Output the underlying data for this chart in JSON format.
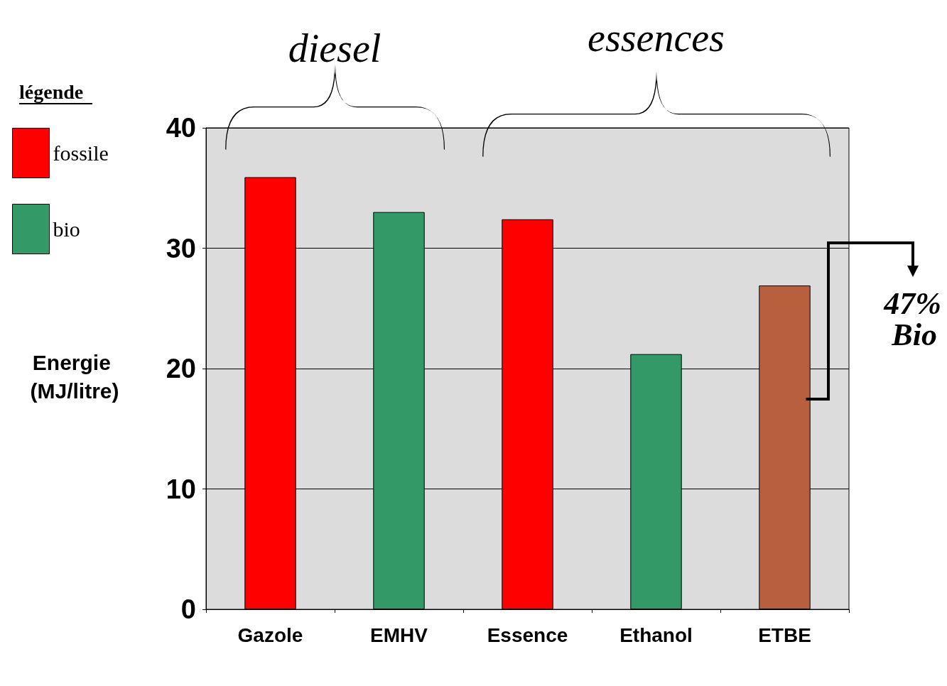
{
  "chart_data": {
    "type": "bar",
    "categories": [
      "Gazole",
      "EMHV",
      "Essence",
      "Ethanol",
      "ETBE"
    ],
    "series": [
      {
        "name": "fossile",
        "color": "#ff0000",
        "values": [
          35.9,
          null,
          32.4,
          null,
          null
        ]
      },
      {
        "name": "bio",
        "color": "#339966",
        "values": [
          null,
          33.0,
          null,
          21.2,
          null
        ]
      },
      {
        "color": "#b8603e",
        "values": [
          null,
          null,
          null,
          null,
          26.9
        ]
      }
    ],
    "ylabel": "Energie (MJ/litre)",
    "legend_title": "légende",
    "ylim": [
      0,
      40
    ],
    "yticks": [
      0,
      10,
      20,
      30,
      40
    ],
    "grid": "y",
    "legend": "left",
    "annotations": [
      "diesel",
      "essences",
      "47% Bio"
    ]
  }
}
